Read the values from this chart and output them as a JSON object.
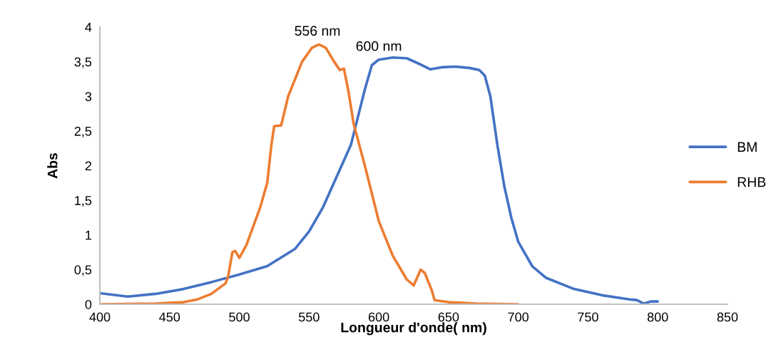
{
  "chart_data": {
    "type": "line",
    "xlabel": "Longueur d'onde( nm)",
    "ylabel": "Abs",
    "xlim": [
      400,
      850
    ],
    "xticks": [
      400,
      450,
      500,
      550,
      600,
      650,
      700,
      750,
      800,
      850
    ],
    "ylim": [
      0,
      4
    ],
    "yticks": [
      0,
      {
        "value": 0.5,
        "label": "0,5"
      },
      1,
      {
        "value": 1.5,
        "label": "1,5"
      },
      2,
      {
        "value": 2.5,
        "label": "2,5"
      },
      3,
      {
        "value": 3.5,
        "label": "3,5"
      },
      4
    ],
    "grid": false,
    "legend": "right",
    "marker": "none",
    "line_style": "solid",
    "annotations": [
      {
        "text": "556 nm",
        "x": 556,
        "y": 3.75
      },
      {
        "text": "600 nm",
        "x": 600,
        "y": 3.53
      }
    ],
    "series": [
      {
        "name": "BM",
        "color": "#4472c4",
        "x": [
          400,
          420,
          440,
          460,
          480,
          500,
          520,
          540,
          550,
          560,
          570,
          580,
          590,
          595,
          600,
          610,
          620,
          630,
          637,
          645,
          655,
          665,
          672,
          676,
          680,
          685,
          690,
          695,
          700,
          710,
          720,
          740,
          760,
          780,
          785,
          790,
          795,
          800
        ],
        "values": [
          0.16,
          0.11,
          0.15,
          0.22,
          0.32,
          0.43,
          0.55,
          0.8,
          1.05,
          1.4,
          1.85,
          2.3,
          3.1,
          3.45,
          3.53,
          3.56,
          3.55,
          3.46,
          3.39,
          3.42,
          3.43,
          3.41,
          3.38,
          3.3,
          3.0,
          2.3,
          1.7,
          1.25,
          0.9,
          0.55,
          0.38,
          0.22,
          0.13,
          0.07,
          0.06,
          0.01,
          0.04,
          0.04
        ]
      },
      {
        "name": "RHB",
        "color": "#ed7d31",
        "x": [
          400,
          440,
          460,
          470,
          480,
          490,
          492,
          495,
          497,
          500,
          505,
          515,
          520,
          523,
          525,
          530,
          535,
          545,
          552,
          557,
          562,
          568,
          572,
          575,
          578,
          582,
          590,
          600,
          610,
          620,
          625,
          630,
          633,
          638,
          640,
          650,
          670,
          700
        ],
        "values": [
          0,
          0.01,
          0.03,
          0.07,
          0.15,
          0.3,
          0.4,
          0.75,
          0.77,
          0.67,
          0.85,
          1.4,
          1.75,
          2.3,
          2.57,
          2.58,
          3.0,
          3.5,
          3.7,
          3.75,
          3.7,
          3.5,
          3.38,
          3.4,
          3.1,
          2.6,
          2.0,
          1.2,
          0.7,
          0.36,
          0.27,
          0.5,
          0.45,
          0.2,
          0.06,
          0.03,
          0.01,
          0.0
        ]
      }
    ]
  }
}
